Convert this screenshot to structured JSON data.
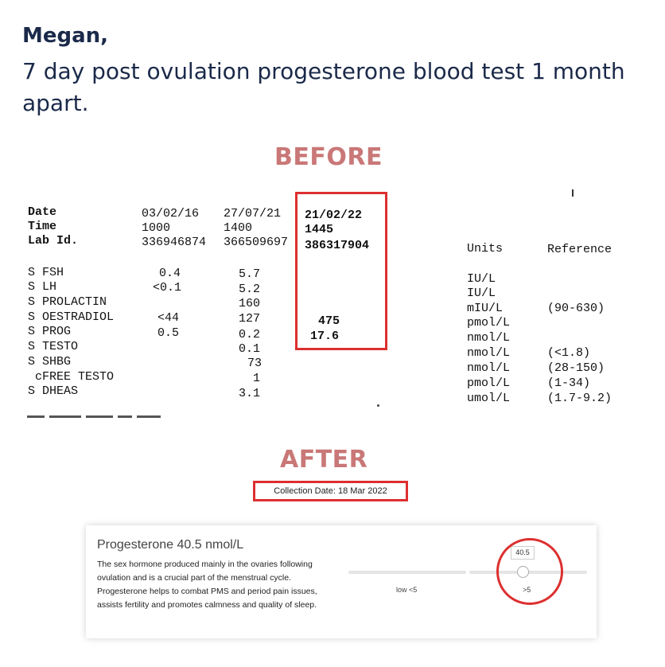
{
  "header": {
    "name": "Megan,",
    "subtitle": "7 day post ovulation progesterone blood test 1 month apart."
  },
  "before": {
    "heading": "BEFORE",
    "report": {
      "row_labels": [
        "Date",
        "Time",
        "Lab Id."
      ],
      "columns": [
        {
          "date": "03/02/16",
          "time": "1000",
          "lab_id": "336946874"
        },
        {
          "date": "27/07/21",
          "time": "1400",
          "lab_id": "366509697"
        },
        {
          "date": "21/02/22",
          "time": "1445",
          "lab_id": "386317904"
        }
      ],
      "units_header": "Units",
      "reference_header": "Reference",
      "tests": [
        {
          "name": "S FSH",
          "v1": "0.4",
          "v2": "5.7",
          "v3": "",
          "unit": "IU/L",
          "ref": ""
        },
        {
          "name": "S LH",
          "v1": "<0.1",
          "v2": "5.2",
          "v3": "",
          "unit": "IU/L",
          "ref": ""
        },
        {
          "name": "S PROLACTIN",
          "v1": "",
          "v2": "160",
          "v3": "",
          "unit": "mIU/L",
          "ref": "(90-630)"
        },
        {
          "name": "S OESTRADIOL",
          "v1": "<44",
          "v2": "127",
          "v3": "475",
          "unit": "pmol/L",
          "ref": ""
        },
        {
          "name": "S PROG",
          "v1": "0.5",
          "v2": "0.2",
          "v3": "17.6",
          "unit": "nmol/L",
          "ref": ""
        },
        {
          "name": "S TESTO",
          "v1": "",
          "v2": "0.1",
          "v3": "",
          "unit": "nmol/L",
          "ref": "(<1.8)"
        },
        {
          "name": "S SHBG",
          "v1": "",
          "v2": "73",
          "v3": "",
          "unit": "nmol/L",
          "ref": "(28-150)"
        },
        {
          "name": " cFREE TESTO",
          "v1": "",
          "v2": "1",
          "v3": "",
          "unit": "pmol/L",
          "ref": "(1-34)"
        },
        {
          "name": "S DHEAS",
          "v1": "",
          "v2": "3.1",
          "v3": "",
          "unit": "umol/L",
          "ref": "(1.7-9.2)"
        }
      ]
    }
  },
  "after": {
    "heading": "AFTER",
    "collection_date": "Collection Date: 18 Mar 2022",
    "card": {
      "title": "Progesterone 40.5 nmol/L",
      "description": "The sex hormone produced mainly in the ovaries following ovulation and is a crucial part of the menstrual cycle. Progesterone helps to combat PMS and period pain issues, assists fertility and promotes calmness and quality of sleep.",
      "value_label": "40.5",
      "low_label": "low <5",
      "high_label": ">5"
    }
  },
  "colors": {
    "heading": "#c97777",
    "highlight": "#dd2f2f",
    "title": "#1b2a4a"
  }
}
